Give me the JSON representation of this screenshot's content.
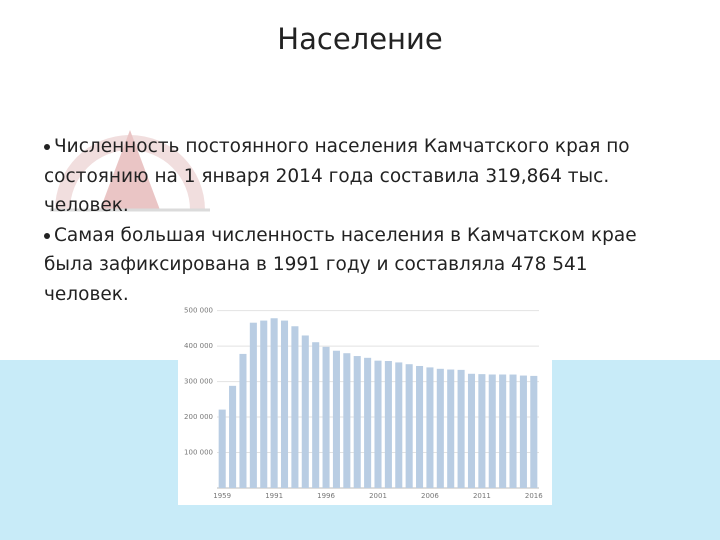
{
  "header": {
    "title": "Население"
  },
  "bullets": [
    "Численность постоянного населения Камчатского края по состоянию на 1 января 2014 года составила 319,864 тыс. человек.",
    "Самая большая численность населения в Камчатском крае была зафиксирована в 1991 году и составляла 478 541 человек."
  ],
  "chart_data": {
    "type": "bar",
    "categories": [
      "1959",
      null,
      null,
      null,
      null,
      "1991",
      null,
      null,
      null,
      null,
      "1996",
      null,
      null,
      null,
      null,
      "2001",
      null,
      null,
      null,
      null,
      "2006",
      null,
      null,
      null,
      null,
      "2011",
      null,
      null,
      null,
      null,
      "2016"
    ],
    "values": [
      221000,
      288000,
      378000,
      466000,
      472000,
      478541,
      472000,
      456000,
      430000,
      411000,
      398000,
      387000,
      380000,
      372000,
      367000,
      359000,
      358000,
      354000,
      349000,
      344000,
      340000,
      336000,
      334000,
      333000,
      322000,
      321000,
      320000,
      320000,
      319864,
      317000,
      316000
    ],
    "color": "#b9cde3",
    "ylim": [
      0,
      530000
    ],
    "yticks": [
      {
        "value": 100000,
        "label": "100 000"
      },
      {
        "value": 200000,
        "label": "200 000"
      },
      {
        "value": 300000,
        "label": "300 000"
      },
      {
        "value": 400000,
        "label": "400 000"
      },
      {
        "value": 500000,
        "label": "500 000"
      }
    ],
    "grid": true
  }
}
